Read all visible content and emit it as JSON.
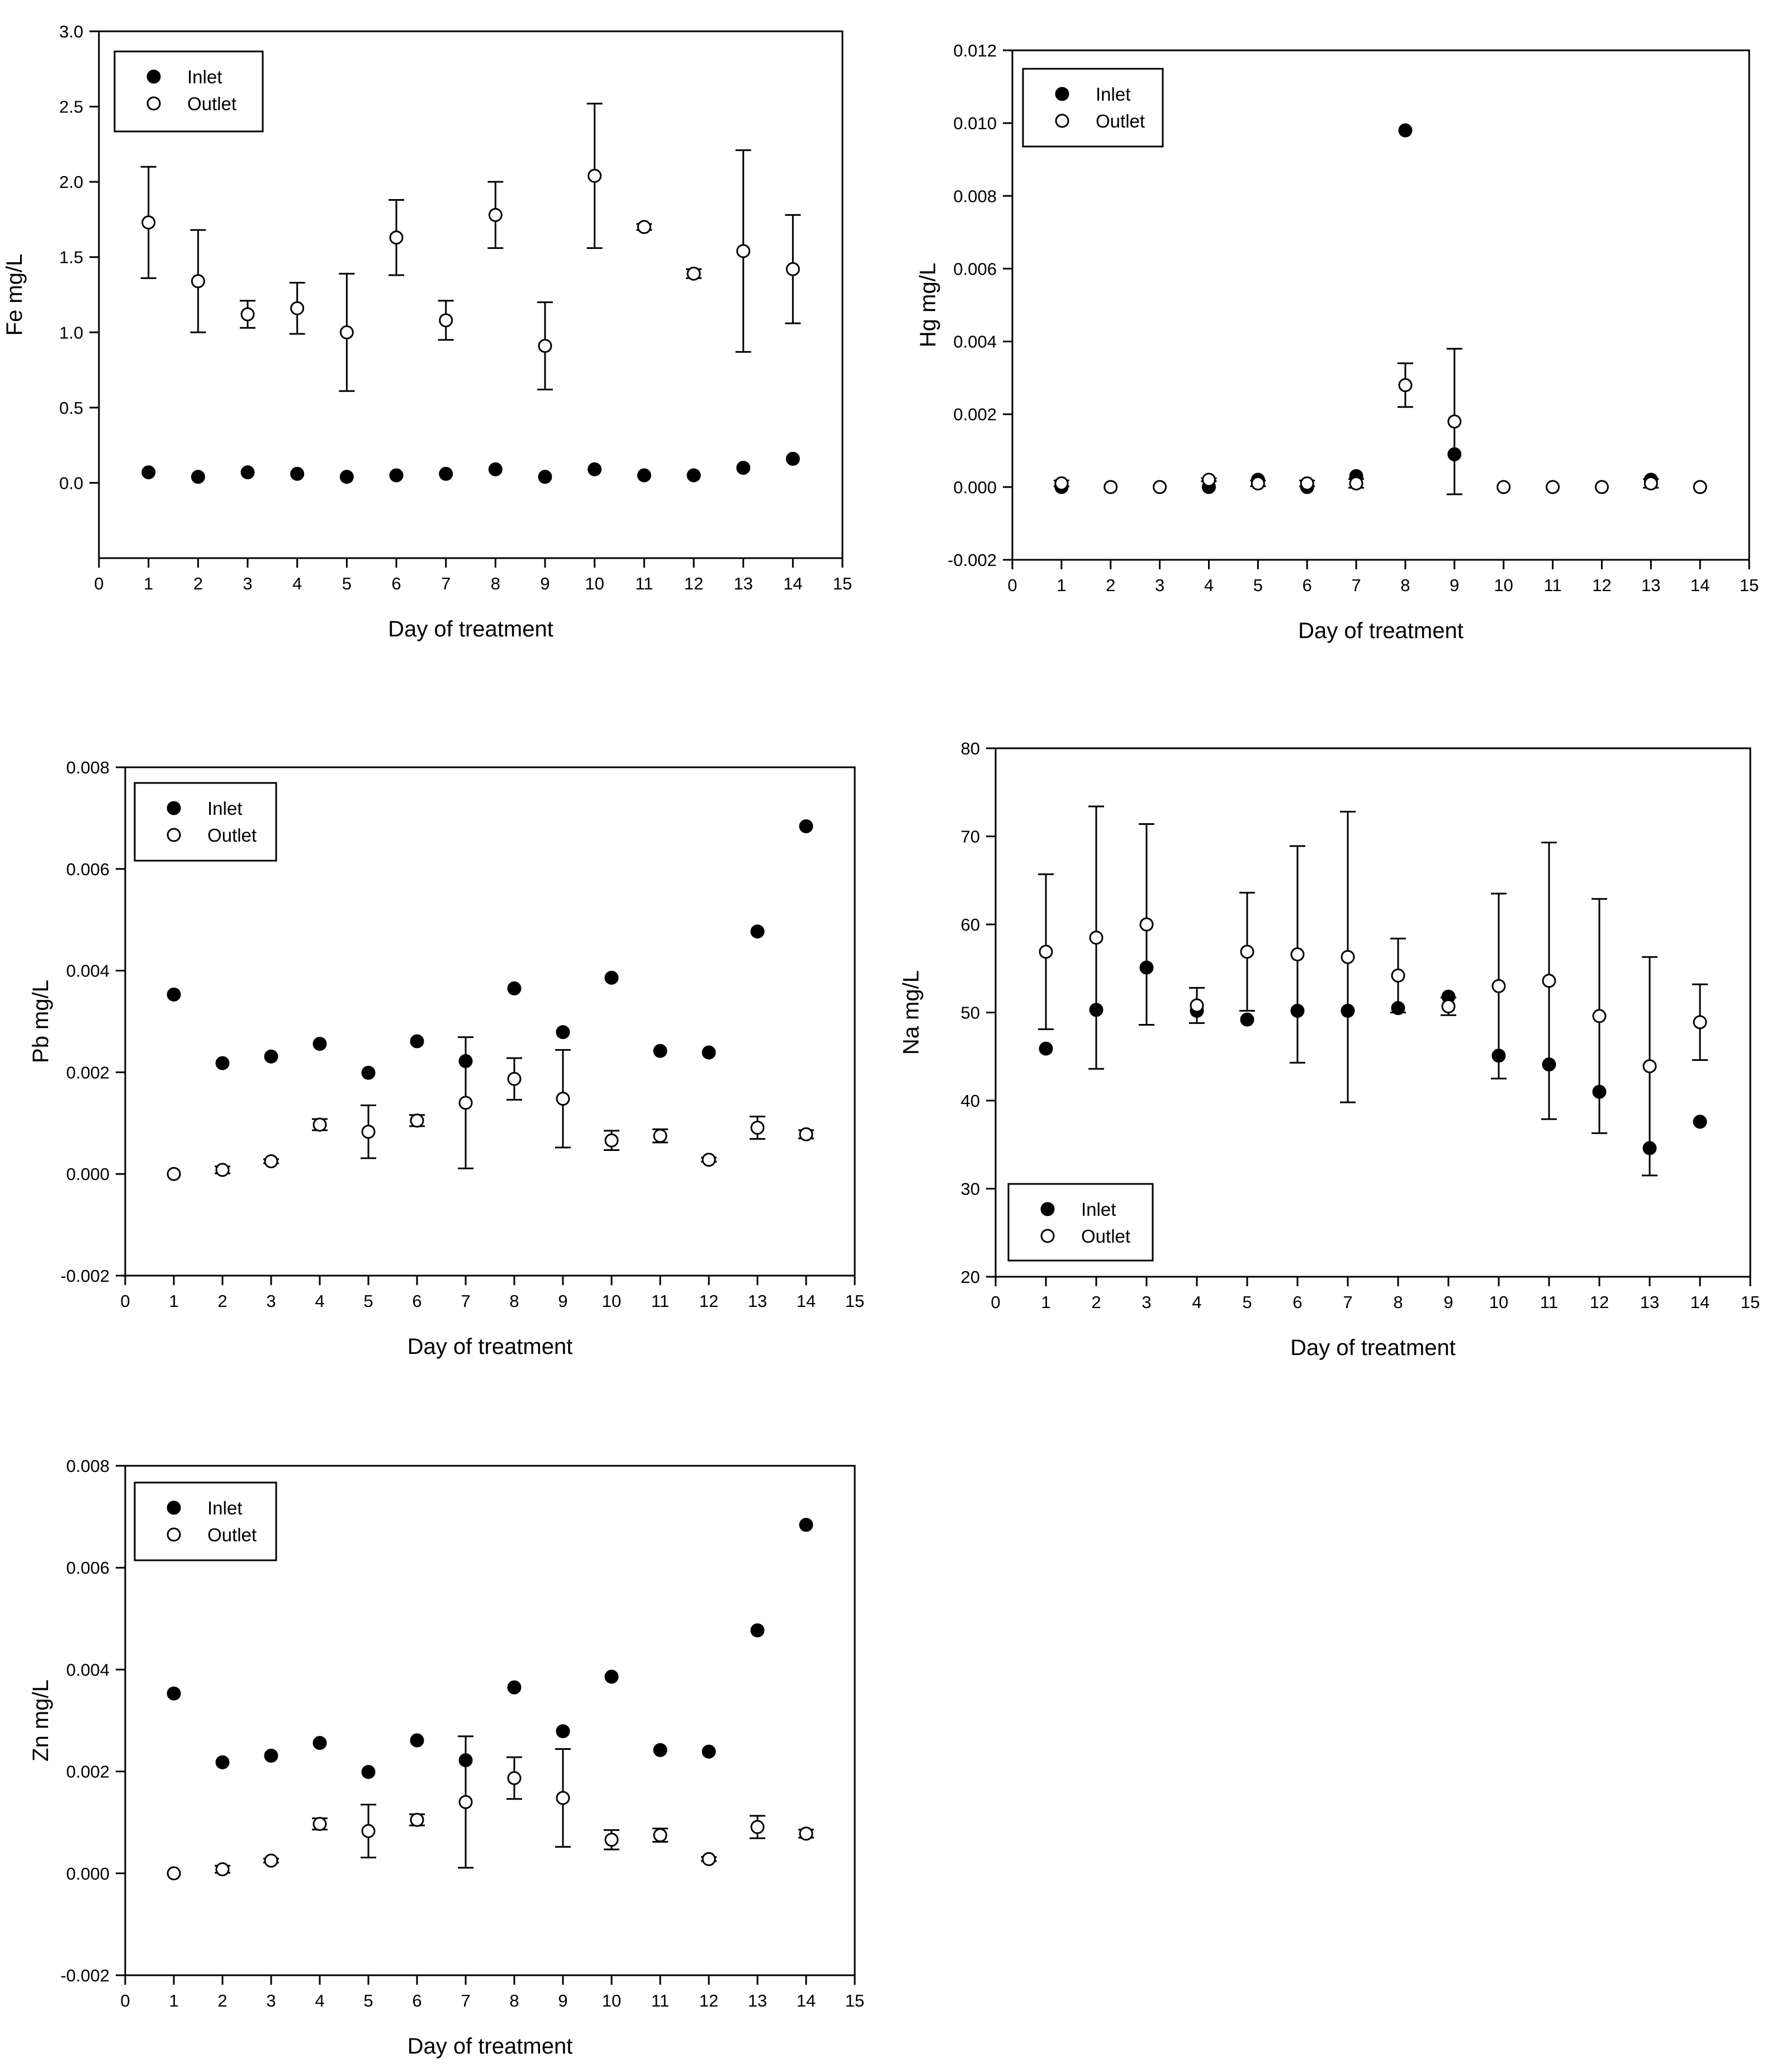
{
  "chart_data": [
    {
      "type": "scatter",
      "title": "",
      "xlabel": "Day of treatment",
      "ylabel": "Fe mg/L",
      "xlim": [
        0,
        15
      ],
      "ylim": [
        -0.5,
        3.0
      ],
      "yticks": [
        "0.0",
        "0.5",
        "1.0",
        "1.5",
        "2.0",
        "2.5",
        "3.0"
      ],
      "xticks": [
        "0",
        "1",
        "2",
        "3",
        "4",
        "5",
        "6",
        "7",
        "8",
        "9",
        "10",
        "11",
        "12",
        "13",
        "14",
        "15"
      ],
      "legend_position": "top-left",
      "grid": false,
      "series": [
        {
          "name": "Inlet",
          "marker": "filled-circle",
          "x": [
            1,
            2,
            3,
            4,
            5,
            6,
            7,
            8,
            9,
            10,
            11,
            12,
            13,
            14
          ],
          "y": [
            0.07,
            0.04,
            0.07,
            0.06,
            0.04,
            0.05,
            0.06,
            0.09,
            0.04,
            0.09,
            0.05,
            0.05,
            0.1,
            0.16
          ],
          "err": [
            0,
            0,
            0,
            0,
            0,
            0,
            0,
            0,
            0,
            0,
            0,
            0,
            0,
            0
          ]
        },
        {
          "name": "Outlet",
          "marker": "open-circle",
          "x": [
            1,
            2,
            3,
            4,
            5,
            6,
            7,
            8,
            9,
            10,
            11,
            12,
            13,
            14
          ],
          "y": [
            1.73,
            1.34,
            1.12,
            1.16,
            1.0,
            1.63,
            1.08,
            1.78,
            0.91,
            2.04,
            1.7,
            1.39,
            1.54,
            1.42
          ],
          "err": [
            0.37,
            0.34,
            0.09,
            0.17,
            0.39,
            0.25,
            0.13,
            0.22,
            0.29,
            0.48,
            0.02,
            0.03,
            0.67,
            0.36
          ]
        }
      ]
    },
    {
      "type": "scatter",
      "title": "",
      "xlabel": "Day of treatment",
      "ylabel": "Hg mg/L",
      "xlim": [
        0,
        15
      ],
      "ylim": [
        -0.002,
        0.012
      ],
      "yticks": [
        "-0.002",
        "0.000",
        "0.002",
        "0.004",
        "0.006",
        "0.008",
        "0.010",
        "0.012"
      ],
      "xticks": [
        "0",
        "1",
        "2",
        "3",
        "4",
        "5",
        "6",
        "7",
        "8",
        "9",
        "10",
        "11",
        "12",
        "13",
        "14",
        "15"
      ],
      "legend_position": "top-left",
      "grid": false,
      "series": [
        {
          "name": "Inlet",
          "marker": "filled-circle",
          "x": [
            1,
            4,
            5,
            6,
            7,
            8,
            9,
            13
          ],
          "y": [
            0.0,
            0.0,
            0.0002,
            0.0,
            0.0003,
            0.0098,
            0.0009,
            0.0002
          ],
          "err": [
            0,
            0,
            0,
            0,
            0,
            0,
            0,
            0
          ]
        },
        {
          "name": "Outlet",
          "marker": "open-circle",
          "x": [
            1,
            2,
            3,
            4,
            5,
            6,
            7,
            8,
            9,
            10,
            11,
            12,
            13,
            14
          ],
          "y": [
            0.0001,
            0.0,
            0.0,
            0.0002,
            0.0001,
            0.0001,
            0.0001,
            0.0028,
            0.0018,
            0.0,
            0.0,
            0.0,
            0.0001,
            0.0
          ],
          "err": [
            8e-05,
            0,
            0,
            4e-05,
            8e-05,
            8e-05,
            0.00012,
            0.0006,
            0.002,
            0,
            0,
            0,
            0.00012,
            0
          ],
          "err_on_inlet_day9": 0.0
        }
      ]
    },
    {
      "type": "scatter",
      "title": "",
      "xlabel": "Day of treatment",
      "ylabel": "Pb mg/L",
      "xlim": [
        0,
        15
      ],
      "ylim": [
        -0.002,
        0.008
      ],
      "yticks": [
        "-0.002",
        "0.000",
        "0.002",
        "0.004",
        "0.006",
        "0.008"
      ],
      "xticks": [
        "0",
        "1",
        "2",
        "3",
        "4",
        "5",
        "6",
        "7",
        "8",
        "9",
        "10",
        "11",
        "12",
        "13",
        "14",
        "15"
      ],
      "legend_position": "top-left",
      "grid": false,
      "series": [
        {
          "name": "Inlet",
          "marker": "filled-circle",
          "x": [
            1,
            2,
            3,
            4,
            5,
            6,
            7,
            8,
            9,
            10,
            11,
            12,
            13,
            14
          ],
          "y": [
            0.00353,
            0.00218,
            0.00231,
            0.00256,
            0.00199,
            0.00261,
            0.00222,
            0.00365,
            0.00279,
            0.00386,
            0.00242,
            0.00239,
            0.00477,
            0.00684
          ],
          "err": [
            0,
            0,
            0,
            0,
            0,
            0,
            0,
            0,
            0,
            0,
            0,
            0,
            0,
            0
          ]
        },
        {
          "name": "Outlet",
          "marker": "open-circle",
          "x": [
            1,
            2,
            3,
            4,
            5,
            6,
            7,
            8,
            9,
            10,
            11,
            12,
            13,
            14
          ],
          "y": [
            0.0,
            8e-05,
            0.00025,
            0.00097,
            0.00083,
            0.00105,
            0.0014,
            0.00187,
            0.00148,
            0.00066,
            0.00075,
            0.00028,
            0.00091,
            0.00078
          ],
          "err": [
            0,
            7e-05,
            4e-05,
            0.00011,
            0.00052,
            0.00011,
            0.00129,
            0.00041,
            0.00096,
            0.00019,
            0.00013,
            4e-05,
            0.00022,
            8e-05
          ]
        }
      ]
    },
    {
      "type": "scatter",
      "title": "",
      "xlabel": "Day of treatment",
      "ylabel": "Na mg/L",
      "xlim": [
        0,
        15
      ],
      "ylim": [
        20,
        80
      ],
      "yticks": [
        "20",
        "30",
        "40",
        "50",
        "60",
        "70",
        "80"
      ],
      "xticks": [
        "0",
        "1",
        "2",
        "3",
        "4",
        "5",
        "6",
        "7",
        "8",
        "9",
        "10",
        "11",
        "12",
        "13",
        "14",
        "15"
      ],
      "legend_position": "bottom-left",
      "grid": false,
      "series": [
        {
          "name": "Inlet",
          "marker": "filled-circle",
          "x": [
            1,
            2,
            3,
            4,
            5,
            6,
            7,
            8,
            9,
            10,
            11,
            12,
            13,
            14
          ],
          "y": [
            45.9,
            50.3,
            55.1,
            50.2,
            49.2,
            50.2,
            50.2,
            50.5,
            51.8,
            45.1,
            44.1,
            41.0,
            34.6,
            37.6
          ],
          "err": [
            0,
            0,
            0,
            0,
            0,
            0,
            0,
            0,
            0,
            0,
            0,
            0,
            0,
            0
          ]
        },
        {
          "name": "Outlet",
          "marker": "open-circle",
          "x": [
            1,
            2,
            3,
            4,
            5,
            6,
            7,
            8,
            9,
            10,
            11,
            12,
            13,
            14
          ],
          "y": [
            56.9,
            58.5,
            60.0,
            50.8,
            56.9,
            56.6,
            56.3,
            54.2,
            50.7,
            53.0,
            53.6,
            49.6,
            43.9,
            48.9
          ],
          "err": [
            8.8,
            14.9,
            11.4,
            2.0,
            6.7,
            12.3,
            16.5,
            4.2,
            1.0,
            10.5,
            15.7,
            13.3,
            12.4,
            4.3
          ]
        }
      ]
    },
    {
      "type": "scatter",
      "title": "",
      "xlabel": "Day of treatment",
      "ylabel": "Zn mg/L",
      "xlim": [
        0,
        15
      ],
      "ylim": [
        -0.002,
        0.008
      ],
      "yticks": [
        "-0.002",
        "0.000",
        "0.002",
        "0.004",
        "0.006",
        "0.008"
      ],
      "xticks": [
        "0",
        "1",
        "2",
        "3",
        "4",
        "5",
        "6",
        "7",
        "8",
        "9",
        "10",
        "11",
        "12",
        "13",
        "14",
        "15"
      ],
      "legend_position": "top-left",
      "grid": false,
      "series": [
        {
          "name": "Inlet",
          "marker": "filled-circle",
          "x": [
            1,
            2,
            3,
            4,
            5,
            6,
            7,
            8,
            9,
            10,
            11,
            12,
            13,
            14
          ],
          "y": [
            0.00353,
            0.00218,
            0.00231,
            0.00256,
            0.00199,
            0.00261,
            0.00222,
            0.00365,
            0.00279,
            0.00386,
            0.00242,
            0.00239,
            0.00477,
            0.00684
          ],
          "err": [
            0,
            0,
            0,
            0,
            0,
            0,
            0,
            0,
            0,
            0,
            0,
            0,
            0,
            0
          ]
        },
        {
          "name": "Outlet",
          "marker": "open-circle",
          "x": [
            1,
            2,
            3,
            4,
            5,
            6,
            7,
            8,
            9,
            10,
            11,
            12,
            13,
            14
          ],
          "y": [
            0.0,
            8e-05,
            0.00025,
            0.00097,
            0.00083,
            0.00105,
            0.0014,
            0.00187,
            0.00148,
            0.00066,
            0.00075,
            0.00028,
            0.00091,
            0.00078
          ],
          "err": [
            0,
            7e-05,
            4e-05,
            0.00011,
            0.00052,
            0.00011,
            0.00129,
            0.00041,
            0.00096,
            0.00019,
            0.00013,
            4e-05,
            0.00022,
            8e-05
          ]
        }
      ]
    }
  ]
}
